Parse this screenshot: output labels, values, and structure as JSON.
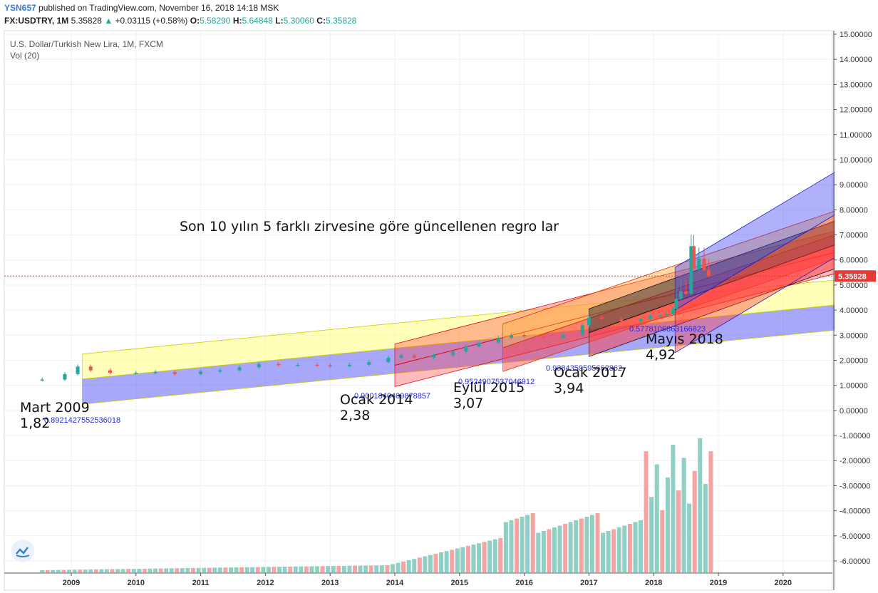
{
  "header": {
    "username": "YSN657",
    "published_text": "published on TradingView.com, November 16, 2018 14:18 MSK",
    "symbol": "FX:USDTRY, 1M",
    "last": "5.35828",
    "change_arrow": "▲",
    "change": "+0.03115 (+0.58%)",
    "o_label": "O:",
    "o_value": "5.58290",
    "h_label": "H:",
    "h_value": "5.64848",
    "l_label": "L:",
    "l_value": "5.30060",
    "c_label": "C:",
    "c_value": "5.35828"
  },
  "legend": {
    "instrument": "U.S. Dollar/Turkish New Lira, 1M, FXCM",
    "volume": "Vol (20)"
  },
  "annotation_title": "Son 10 yılın 5 farklı zirvesine göre güncellenen regro lar",
  "price_tag": "5.35828",
  "colors": {
    "up": "#26a69a",
    "down": "#ef5350",
    "volume_up": "#8fcfc4",
    "volume_down": "#f3a4a3",
    "price_line": "#e53935",
    "channel_blue": "#3d3df5",
    "channel_red": "#ff3b3b",
    "channel_yellow": "#ffff66",
    "channel_orange": "#ffb040",
    "channel_black": "#333333"
  },
  "chart_data": {
    "type": "candlestick",
    "timeframe": "1M",
    "ylim": [
      -6.3,
      15.0
    ],
    "xlim": [
      2008.0,
      2020.8
    ],
    "y_ticks": [
      "15.00000",
      "14.00000",
      "13.00000",
      "12.00000",
      "11.00000",
      "10.00000",
      "9.00000",
      "8.00000",
      "7.00000",
      "6.00000",
      "5.00000",
      "4.00000",
      "3.00000",
      "2.00000",
      "1.00000",
      "0.00000",
      "-1.00000",
      "-2.00000",
      "-3.00000",
      "-4.00000",
      "-5.00000",
      "-6.00000"
    ],
    "x_ticks": [
      "2009",
      "2010",
      "2011",
      "2012",
      "2013",
      "2014",
      "2015",
      "2016",
      "2017",
      "2018",
      "2019",
      "2020"
    ],
    "price_line": 5.35828,
    "close_series": {
      "x": [
        2008.55,
        2008.9,
        2009.1,
        2009.3,
        2009.6,
        2010.0,
        2010.3,
        2010.6,
        2011.0,
        2011.3,
        2011.6,
        2011.9,
        2012.2,
        2012.5,
        2012.8,
        2013.0,
        2013.3,
        2013.6,
        2013.9,
        2014.1,
        2014.3,
        2014.6,
        2014.9,
        2015.1,
        2015.3,
        2015.6,
        2015.8,
        2016.0,
        2016.3,
        2016.6,
        2016.9,
        2017.0,
        2017.2,
        2017.5,
        2017.8,
        2017.95,
        2018.1,
        2018.2,
        2018.3,
        2018.35,
        2018.42,
        2018.5,
        2018.58,
        2018.62,
        2018.7,
        2018.78,
        2018.85
      ],
      "y": [
        1.23,
        1.45,
        1.75,
        1.6,
        1.5,
        1.5,
        1.53,
        1.45,
        1.55,
        1.6,
        1.72,
        1.85,
        1.8,
        1.82,
        1.8,
        1.77,
        1.82,
        1.93,
        2.1,
        2.2,
        2.1,
        2.2,
        2.35,
        2.55,
        2.7,
        2.9,
        3.0,
        2.95,
        2.9,
        3.0,
        3.4,
        3.7,
        3.65,
        3.55,
        3.65,
        3.78,
        3.78,
        3.85,
        4.05,
        4.45,
        4.75,
        4.65,
        6.55,
        5.65,
        6.05,
        5.6,
        5.36
      ]
    },
    "channels": [
      {
        "label": "0.8921427552536018",
        "start_label": "Mart 2009",
        "start_value": "1,82",
        "color": "#3d3df5"
      },
      {
        "label": "0.9001840409878857",
        "start_label": "Ocak 2014",
        "start_value": "2,38",
        "color": "#ff3b3b"
      },
      {
        "label": "0.9524907537046912",
        "start_label": "Eylül 2015",
        "start_value": "3,07",
        "color": "#3d3df5"
      },
      {
        "label": "0.9384359595662862",
        "start_label": "Ocak 2017",
        "start_value": "3,94",
        "color": "#333333"
      },
      {
        "label": "0.5778106863166823",
        "start_label": "Mayıs 2018",
        "start_value": "4,92",
        "color": "#3d3df5"
      }
    ],
    "volume_note": "Volume histogram in lower pane, relative scale"
  }
}
